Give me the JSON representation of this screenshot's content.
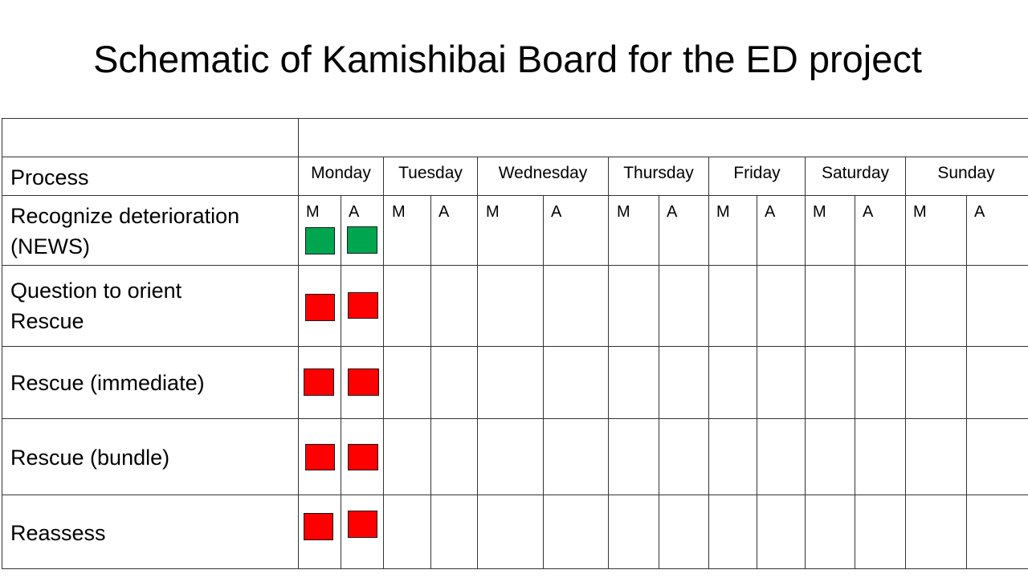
{
  "title": "Schematic of Kamishibai Board for the ED project",
  "process_header": "Process",
  "days": [
    "Monday",
    "Tuesday",
    "Wednesday",
    "Thursday",
    "Friday",
    "Saturday",
    "Sunday"
  ],
  "shift_labels": {
    "morning": "M",
    "afternoon": "A"
  },
  "processes": [
    "Recognize deterioration (NEWS)",
    "Question to orient Rescue",
    "Rescue (immediate)",
    "Rescue (bundle)",
    "Reassess"
  ],
  "colors": {
    "done": "#00a64f",
    "not_done": "#ff0000"
  },
  "status": {
    "monday": [
      {
        "morning": "done",
        "afternoon": "done"
      },
      {
        "morning": "not_done",
        "afternoon": "not_done"
      },
      {
        "morning": "not_done",
        "afternoon": "not_done"
      },
      {
        "morning": "not_done",
        "afternoon": "not_done"
      },
      {
        "morning": "not_done",
        "afternoon": "not_done"
      }
    ]
  }
}
